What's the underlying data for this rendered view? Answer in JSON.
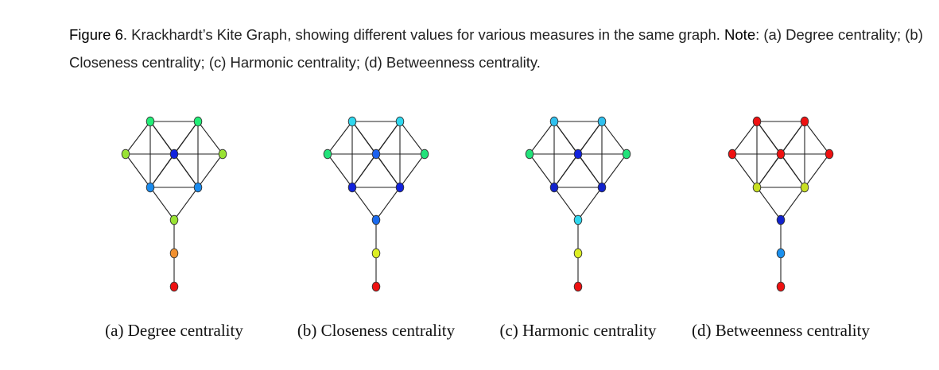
{
  "caption": {
    "figure_label": "Figure 6",
    "text": ". Krackhardt’s Kite Graph, showing different values for various measures in the same graph.",
    "note_label": "Note",
    "note_text": ": (a) Degree centrality; (b) Closeness centrality; (c) Harmonic centrality; (d) Betweenness centrality."
  },
  "graph": {
    "node_ids": [
      "top-left",
      "top-right",
      "left",
      "center",
      "right",
      "mid-left",
      "mid-right",
      "neck",
      "tail-upper",
      "tail-end"
    ],
    "edges": [
      [
        "top-left",
        "top-right"
      ],
      [
        "top-left",
        "left"
      ],
      [
        "top-left",
        "center"
      ],
      [
        "top-left",
        "mid-left"
      ],
      [
        "top-left",
        "mid-right"
      ],
      [
        "top-right",
        "center"
      ],
      [
        "top-right",
        "right"
      ],
      [
        "top-right",
        "mid-left"
      ],
      [
        "top-right",
        "mid-right"
      ],
      [
        "left",
        "center"
      ],
      [
        "left",
        "mid-left"
      ],
      [
        "center",
        "right"
      ],
      [
        "center",
        "mid-left"
      ],
      [
        "center",
        "mid-right"
      ],
      [
        "right",
        "mid-right"
      ],
      [
        "mid-left",
        "mid-right"
      ],
      [
        "mid-left",
        "neck"
      ],
      [
        "mid-right",
        "neck"
      ],
      [
        "neck",
        "tail-upper"
      ],
      [
        "tail-upper",
        "tail-end"
      ]
    ]
  },
  "panels": [
    {
      "label": "(a) Degree centrality",
      "node_colors": [
        "#22ee77",
        "#22ee77",
        "#99e233",
        "#1122dd",
        "#99e233",
        "#1a8bee",
        "#1a8bee",
        "#99e233",
        "#f09030",
        "#ee1111"
      ]
    },
    {
      "label": "(b) Closeness centrality",
      "node_colors": [
        "#2fd7ee",
        "#2fd7ee",
        "#22e27a",
        "#1a60ee",
        "#22e27a",
        "#1122dd",
        "#1122dd",
        "#1a6aee",
        "#dcee22",
        "#ee1111"
      ]
    },
    {
      "label": "(c) Harmonic centrality",
      "node_colors": [
        "#2fc0ee",
        "#2fc0ee",
        "#22e27a",
        "#1122dd",
        "#22e27a",
        "#1122cc",
        "#1122cc",
        "#2fd7ee",
        "#dcee22",
        "#ee1111"
      ]
    },
    {
      "label": "(d) Betweenness centrality",
      "node_colors": [
        "#ee1111",
        "#ee1111",
        "#ee1111",
        "#ee1111",
        "#ee1111",
        "#c8e022",
        "#c8e022",
        "#1122cc",
        "#1a90ee",
        "#ee1111"
      ]
    }
  ]
}
